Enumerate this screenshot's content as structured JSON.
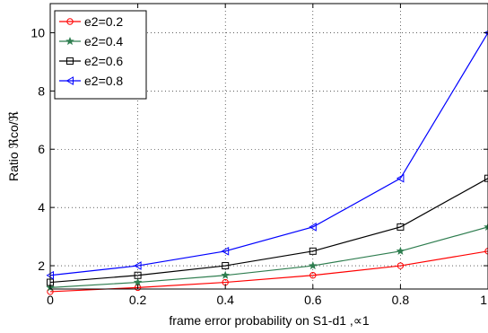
{
  "chart_data": {
    "type": "line",
    "xlabel": "frame error probability on S1-d1 ,∝1",
    "ylabel": "Ratio ℜco/ℜ",
    "xlim": [
      0,
      1
    ],
    "ylim": [
      1.2,
      11
    ],
    "x_ticks": [
      0,
      0.2,
      0.4,
      0.6,
      0.8,
      1
    ],
    "x_tick_labels": [
      "0",
      "0.2",
      "0.4",
      "0.6",
      "0.8",
      "1"
    ],
    "y_ticks": [
      2,
      4,
      6,
      8,
      10
    ],
    "y_tick_labels": [
      "2",
      "4",
      "6",
      "8",
      "10"
    ],
    "grid": true,
    "legend_position": "top-left",
    "x": [
      0,
      0.2,
      0.4,
      0.6,
      0.8,
      1
    ],
    "series": [
      {
        "name": "e2=0.2",
        "color": "#ff0000",
        "marker": "circle",
        "values": [
          1.11,
          1.25,
          1.43,
          1.67,
          2.0,
          2.5
        ]
      },
      {
        "name": "e2=0.4",
        "color": "#2e7d4f",
        "marker": "star",
        "values": [
          1.25,
          1.43,
          1.67,
          2.0,
          2.5,
          3.33
        ]
      },
      {
        "name": "e2=0.6",
        "color": "#000000",
        "marker": "square",
        "values": [
          1.43,
          1.67,
          2.0,
          2.5,
          3.33,
          5.0
        ]
      },
      {
        "name": "e2=0.8",
        "color": "#0000ff",
        "marker": "triangle",
        "values": [
          1.67,
          2.0,
          2.5,
          3.33,
          5.0,
          10.0
        ]
      }
    ]
  }
}
